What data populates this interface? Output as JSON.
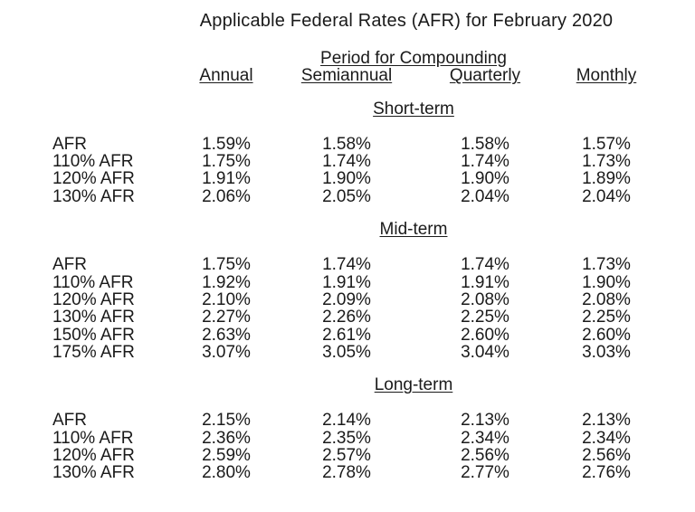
{
  "title": "Applicable Federal Rates (AFR) for February 2020",
  "colors": {
    "background": "#ffffff",
    "text": "#1a1a1a"
  },
  "table": {
    "compounding_header": "Period for Compounding",
    "columns": [
      "Annual",
      "Semiannual",
      "Quarterly",
      "Monthly"
    ],
    "sections": [
      {
        "heading": "Short-term",
        "rows": [
          {
            "label": "AFR",
            "values": [
              "1.59%",
              "1.58%",
              "1.58%",
              "1.57%"
            ]
          },
          {
            "label": "110% AFR",
            "values": [
              "1.75%",
              "1.74%",
              "1.74%",
              "1.73%"
            ]
          },
          {
            "label": "120% AFR",
            "values": [
              "1.91%",
              "1.90%",
              "1.90%",
              "1.89%"
            ]
          },
          {
            "label": "130% AFR",
            "values": [
              "2.06%",
              "2.05%",
              "2.04%",
              "2.04%"
            ]
          }
        ]
      },
      {
        "heading": "Mid-term",
        "rows": [
          {
            "label": "AFR",
            "values": [
              "1.75%",
              "1.74%",
              "1.74%",
              "1.73%"
            ]
          },
          {
            "label": "110% AFR",
            "values": [
              "1.92%",
              "1.91%",
              "1.91%",
              "1.90%"
            ]
          },
          {
            "label": "120% AFR",
            "values": [
              "2.10%",
              "2.09%",
              "2.08%",
              "2.08%"
            ]
          },
          {
            "label": "130% AFR",
            "values": [
              "2.27%",
              "2.26%",
              "2.25%",
              "2.25%"
            ]
          },
          {
            "label": "150% AFR",
            "values": [
              "2.63%",
              "2.61%",
              "2.60%",
              "2.60%"
            ]
          },
          {
            "label": "175% AFR",
            "values": [
              "3.07%",
              "3.05%",
              "3.04%",
              "3.03%"
            ]
          }
        ]
      },
      {
        "heading": "Long-term",
        "rows": [
          {
            "label": "AFR",
            "values": [
              "2.15%",
              "2.14%",
              "2.13%",
              "2.13%"
            ]
          },
          {
            "label": "110% AFR",
            "values": [
              "2.36%",
              "2.35%",
              "2.34%",
              "2.34%"
            ]
          },
          {
            "label": "120% AFR",
            "values": [
              "2.59%",
              "2.57%",
              "2.56%",
              "2.56%"
            ]
          },
          {
            "label": "130% AFR",
            "values": [
              "2.80%",
              "2.78%",
              "2.77%",
              "2.76%"
            ]
          }
        ]
      }
    ]
  }
}
